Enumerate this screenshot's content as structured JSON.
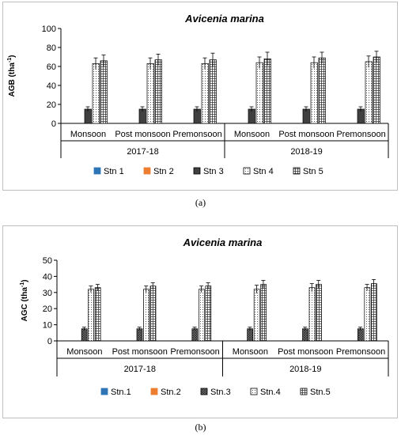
{
  "charts": [
    {
      "id": "a",
      "caption": "(a)",
      "chart_data": {
        "type": "bar",
        "title": "Avicenia marina",
        "xlabel": "",
        "ylabel": "AGB (tha",
        "ylabel_sup": "-1",
        "ylabel_close": ")",
        "ylim": [
          0,
          100
        ],
        "yticks": [
          0,
          20,
          40,
          60,
          80,
          100
        ],
        "years": [
          "2017-18",
          "2018-19"
        ],
        "seasons": [
          "Monsoon",
          "Post monsoon",
          "Premonsoon"
        ],
        "categories": [
          "Monsoon 2017-18",
          "Post monsoon 2017-18",
          "Premonsoon 2017-18",
          "Monsoon 2018-19",
          "Post monsoon 2018-19",
          "Premonsoon 2018-19"
        ],
        "series": [
          {
            "name": "Stn 1",
            "color": "#2e75b6",
            "values": [
              0,
              0,
              0,
              0,
              0,
              0
            ],
            "errors": [
              0,
              0,
              0,
              0,
              0,
              0
            ]
          },
          {
            "name": "Stn 2",
            "color": "#ed7d31",
            "values": [
              0,
              0,
              0,
              0,
              0,
              0
            ],
            "errors": [
              0,
              0,
              0,
              0,
              0,
              0
            ]
          },
          {
            "name": "Stn 3",
            "color": "#404040",
            "values": [
              15,
              15,
              15,
              15,
              15,
              15
            ],
            "errors": [
              2.5,
              2.5,
              2.5,
              2.5,
              2.5,
              2.5
            ]
          },
          {
            "name": "Stn 4",
            "color": "#ffffff",
            "values": [
              63,
              63,
              63,
              64,
              64,
              65
            ],
            "errors": [
              6,
              6,
              6,
              6,
              6,
              6
            ]
          },
          {
            "name": "Stn 5",
            "color": "#ffffff",
            "values": [
              66,
              67,
              67,
              68,
              69,
              70
            ],
            "errors": [
              6,
              6,
              7,
              7,
              6,
              6
            ]
          }
        ],
        "grid": false,
        "legend": "bottom"
      }
    },
    {
      "id": "b",
      "caption": "(b)",
      "chart_data": {
        "type": "bar",
        "title": "Avicenia marina",
        "xlabel": "",
        "ylabel": "AGC (tha",
        "ylabel_sup": "-1",
        "ylabel_close": ")",
        "ylim": [
          0,
          50
        ],
        "yticks": [
          0,
          10,
          20,
          30,
          40,
          50
        ],
        "years": [
          "2017-18",
          "2018-19"
        ],
        "seasons": [
          "Monsoon",
          "Post monsoon",
          "Premonsoon"
        ],
        "categories": [
          "Monsoon 2017-18",
          "Post monsoon 2017-18",
          "Premonsoon 2017-18",
          "Monsoon 2018-19",
          "Post monsoon 2018-19",
          "Premonsoon 2018-19"
        ],
        "series": [
          {
            "name": "Stn.1",
            "color": "#2e75b6",
            "values": [
              0,
              0,
              0,
              0,
              0,
              0
            ],
            "errors": [
              0,
              0,
              0,
              0,
              0,
              0
            ]
          },
          {
            "name": "Stn.2",
            "color": "#ed7d31",
            "values": [
              0,
              0,
              0,
              0,
              0,
              0
            ],
            "errors": [
              0,
              0,
              0,
              0,
              0,
              0
            ]
          },
          {
            "name": "Stn.3",
            "color": "#7f7f7f",
            "values": [
              7.5,
              7.5,
              7.5,
              7.5,
              7.5,
              7.5
            ],
            "errors": [
              1,
              1,
              1,
              1,
              1,
              1
            ]
          },
          {
            "name": "Stn.4",
            "color": "#ffffff",
            "values": [
              32,
              32,
              32,
              32,
              33,
              33
            ],
            "errors": [
              2,
              2,
              2,
              2.5,
              2.5,
              2
            ]
          },
          {
            "name": "Stn.5",
            "color": "#ffffff",
            "values": [
              33,
              34,
              34,
              35,
              35,
              35.5
            ],
            "errors": [
              2,
              2,
              2,
              2.5,
              2.5,
              2.5
            ]
          }
        ],
        "grid": false,
        "legend": "bottom"
      }
    }
  ]
}
